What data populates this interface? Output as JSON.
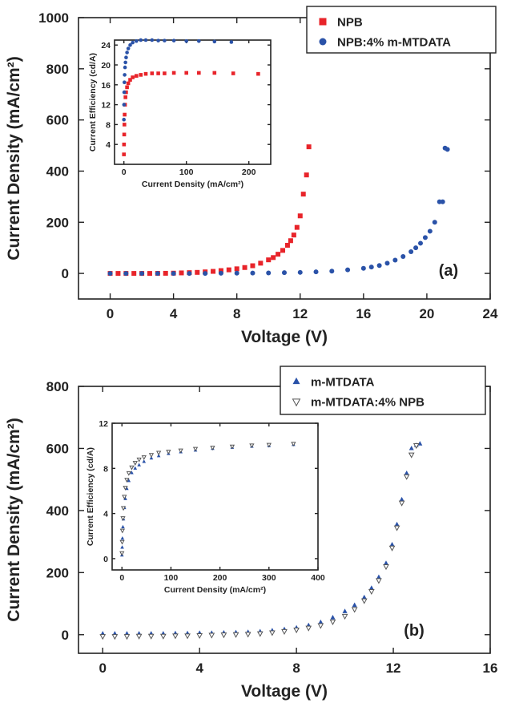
{
  "chart_data": [
    {
      "type": "scatter",
      "panel_label": "(a)",
      "xlabel": "Voltage (V)",
      "ylabel": "Current Density (mA/cm²)",
      "xlim": [
        -2,
        24
      ],
      "ylim": [
        -100,
        1000
      ],
      "xticks": [
        0,
        4,
        8,
        12,
        16,
        20,
        24
      ],
      "yticks": [
        0,
        200,
        400,
        600,
        800,
        1000
      ],
      "grid": false,
      "legend_position": "top-right",
      "series": [
        {
          "name": "NPB",
          "color": "#e8242a",
          "marker": "square",
          "x": [
            0,
            0.5,
            1,
            1.5,
            2,
            2.5,
            3,
            3.5,
            4,
            4.5,
            5,
            5.5,
            6,
            6.5,
            7,
            7.5,
            8,
            8.5,
            9,
            9.5,
            10,
            10.3,
            10.6,
            10.9,
            11.2,
            11.4,
            11.6,
            11.8,
            12.0,
            12.2,
            12.4,
            12.55
          ],
          "y": [
            0,
            0,
            0,
            0,
            0,
            0,
            0.2,
            0.5,
            1,
            2,
            3,
            4,
            6,
            8,
            11,
            14,
            18,
            23,
            30,
            40,
            53,
            62,
            75,
            90,
            110,
            128,
            150,
            180,
            225,
            310,
            385,
            495
          ]
        },
        {
          "name": "NPB:4% m-MTDATA",
          "color": "#2a52a8",
          "marker": "circle",
          "x": [
            0,
            1,
            2,
            3,
            4,
            5,
            6,
            7,
            8,
            9,
            10,
            11,
            12,
            13,
            14,
            15,
            16,
            16.5,
            17,
            17.5,
            18,
            18.5,
            19,
            19.3,
            19.6,
            19.9,
            20.2,
            20.5,
            20.8,
            21.0,
            21.15,
            21.3
          ],
          "y": [
            0,
            0,
            0,
            0,
            0,
            0,
            0,
            0.5,
            1,
            1.5,
            2,
            3,
            4,
            6,
            9,
            14,
            20,
            25,
            31,
            40,
            52,
            66,
            85,
            100,
            118,
            140,
            165,
            200,
            280,
            280,
            490,
            485
          ]
        }
      ],
      "inset": {
        "xlabel": "Current Density (mA/cm²)",
        "ylabel": "Current Efficiency (cd/A)",
        "xlim": [
          -15,
          235
        ],
        "ylim": [
          0,
          25
        ],
        "xticks": [
          0,
          100,
          200
        ],
        "yticks": [
          4,
          8,
          12,
          16,
          20,
          24
        ],
        "series": [
          {
            "name": "NPB",
            "color": "#e8242a",
            "marker": "square",
            "x": [
              0,
              0.2,
              0.5,
              0.8,
              1.2,
              1.8,
              2.5,
              3.5,
              5,
              7,
              10,
              14,
              20,
              27,
              35,
              45,
              55,
              65,
              80,
              100,
              120,
              145,
              175,
              215
            ],
            "y": [
              2,
              4,
              6,
              8,
              10,
              12,
              13.5,
              14.5,
              15.5,
              16.3,
              17,
              17.5,
              17.8,
              18,
              18.2,
              18.3,
              18.3,
              18.3,
              18.4,
              18.4,
              18.4,
              18.4,
              18.3,
              18.2
            ]
          },
          {
            "name": "NPB:4% m-MTDATA",
            "color": "#2a52a8",
            "marker": "circle",
            "x": [
              0,
              0.2,
              0.5,
              0.8,
              1.2,
              1.8,
              2.5,
              3.5,
              5,
              7,
              10,
              14,
              20,
              27,
              35,
              45,
              55,
              65,
              80,
              100,
              120,
              145,
              172
            ],
            "y": [
              9,
              12,
              14.5,
              16.5,
              18,
              19.5,
              20.5,
              21.5,
              22.5,
              23.3,
              24,
              24.5,
              24.8,
              25,
              25,
              25,
              24.9,
              24.9,
              24.9,
              24.8,
              24.8,
              24.7,
              24.6
            ]
          }
        ]
      }
    },
    {
      "type": "scatter",
      "panel_label": "(b)",
      "xlabel": "Voltage (V)",
      "ylabel": "Current Density (mA/cm²)",
      "xlim": [
        -1,
        16
      ],
      "ylim": [
        -60,
        800
      ],
      "xticks": [
        0,
        4,
        8,
        12,
        16
      ],
      "yticks": [
        0,
        200,
        400,
        600,
        800
      ],
      "grid": false,
      "legend_position": "top-right",
      "series": [
        {
          "name": "m-MTDATA",
          "color": "#2a52a8",
          "marker": "triangle-up",
          "x": [
            0,
            0.5,
            1,
            1.5,
            2,
            2.5,
            3,
            3.5,
            4,
            4.5,
            5,
            5.5,
            6,
            6.5,
            7,
            7.5,
            8,
            8.5,
            9,
            9.5,
            10,
            10.4,
            10.8,
            11.1,
            11.4,
            11.7,
            11.95,
            12.15,
            12.35,
            12.55,
            12.75,
            12.95,
            13.1
          ],
          "y": [
            3,
            3,
            3,
            3,
            3,
            3,
            4,
            4,
            5,
            5,
            6,
            7,
            8,
            10,
            13,
            17,
            22,
            30,
            40,
            55,
            75,
            95,
            120,
            150,
            185,
            230,
            290,
            355,
            435,
            520,
            600,
            610,
            615
          ]
        },
        {
          "name": "m-MTDATA:4% NPB",
          "color": "#555555",
          "marker": "triangle-down-open",
          "x": [
            0,
            0.5,
            1,
            1.5,
            2,
            2.5,
            3,
            3.5,
            4,
            4.5,
            5,
            5.5,
            6,
            6.5,
            7,
            7.5,
            8,
            8.5,
            9,
            9.5,
            10,
            10.4,
            10.8,
            11.1,
            11.4,
            11.7,
            11.95,
            12.15,
            12.35,
            12.55,
            12.75,
            12.95
          ],
          "y": [
            -5,
            -5,
            -5,
            -4,
            -4,
            -4,
            -3,
            -3,
            -2,
            -1,
            0,
            1,
            2,
            4,
            7,
            11,
            16,
            22,
            30,
            42,
            60,
            82,
            110,
            140,
            175,
            220,
            280,
            345,
            425,
            510,
            580,
            610
          ]
        }
      ],
      "inset": {
        "xlabel": "Current Density (mA/cm²)",
        "ylabel": "Current Efficiency (cd/A)",
        "xlim": [
          -20,
          400
        ],
        "ylim": [
          -1,
          12
        ],
        "xticks": [
          0,
          100,
          200,
          300,
          400
        ],
        "yticks": [
          0,
          4,
          8,
          12
        ],
        "series": [
          {
            "name": "m-MTDATA",
            "color": "#2a52a8",
            "marker": "triangle-up",
            "x": [
              0,
              0.5,
              1,
              2,
              3,
              5,
              7,
              10,
              14,
              20,
              27,
              35,
              45,
              60,
              75,
              95,
              120,
              150,
              185,
              225,
              265,
              300,
              350
            ],
            "y": [
              0.3,
              1,
              1.8,
              2.8,
              3.5,
              4.5,
              5.3,
              6.2,
              6.9,
              7.6,
              8.0,
              8.3,
              8.6,
              8.9,
              9.1,
              9.3,
              9.45,
              9.6,
              9.75,
              9.85,
              9.95,
              10.0,
              10.1
            ]
          },
          {
            "name": "m-MTDATA:4% NPB",
            "color": "#555555",
            "marker": "triangle-down-open",
            "x": [
              0,
              0.5,
              1,
              2,
              3,
              5,
              7,
              10,
              14,
              20,
              27,
              35,
              45,
              60,
              75,
              95,
              120,
              150,
              185,
              225,
              265,
              300,
              350
            ],
            "y": [
              0.5,
              1.5,
              2.5,
              3.6,
              4.5,
              5.5,
              6.3,
              7.0,
              7.6,
              8.1,
              8.5,
              8.8,
              9.0,
              9.2,
              9.4,
              9.5,
              9.6,
              9.75,
              9.85,
              9.95,
              10.05,
              10.1,
              10.2
            ]
          }
        ]
      }
    }
  ]
}
